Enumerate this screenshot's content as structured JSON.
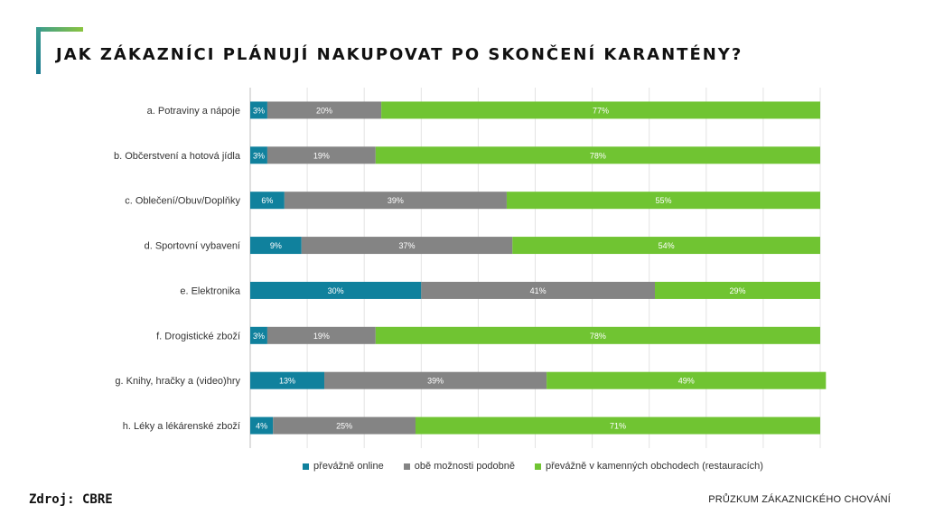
{
  "title": "JAK ZÁKAZNÍCI PLÁNUJÍ NAKUPOVAT PO SKONČENÍ KARANTÉNY?",
  "source": "Zdroj: CBRE",
  "footer": "PRŮZKUM ZÁKAZNICKÉHO CHOVÁNÍ",
  "chart_data": {
    "type": "bar",
    "orientation": "horizontal",
    "stacked": "100%",
    "categories": [
      "a. Potraviny a nápoje",
      "b. Občerstvení a hotová jídla",
      "c. Oblečení/Obuv/Doplňky",
      "d. Sportovní vybavení",
      "e. Elektronika",
      "f. Drogistické zboží",
      "g. Knihy, hračky a (video)hry",
      "h. Léky a lékárenské zboží"
    ],
    "series": [
      {
        "name": "převážně online",
        "color": "#10819d",
        "values": [
          3,
          3,
          6,
          9,
          30,
          3,
          13,
          4
        ]
      },
      {
        "name": "obě možnosti podobně",
        "color": "#848484",
        "values": [
          20,
          19,
          39,
          37,
          41,
          19,
          39,
          25
        ]
      },
      {
        "name": "převážně v kamenných obchodech (restauracích)",
        "color": "#70c432",
        "values": [
          77,
          78,
          55,
          54,
          29,
          78,
          49,
          71
        ]
      }
    ],
    "xlim": [
      0,
      100
    ],
    "grid": true,
    "legend": "bottom"
  }
}
